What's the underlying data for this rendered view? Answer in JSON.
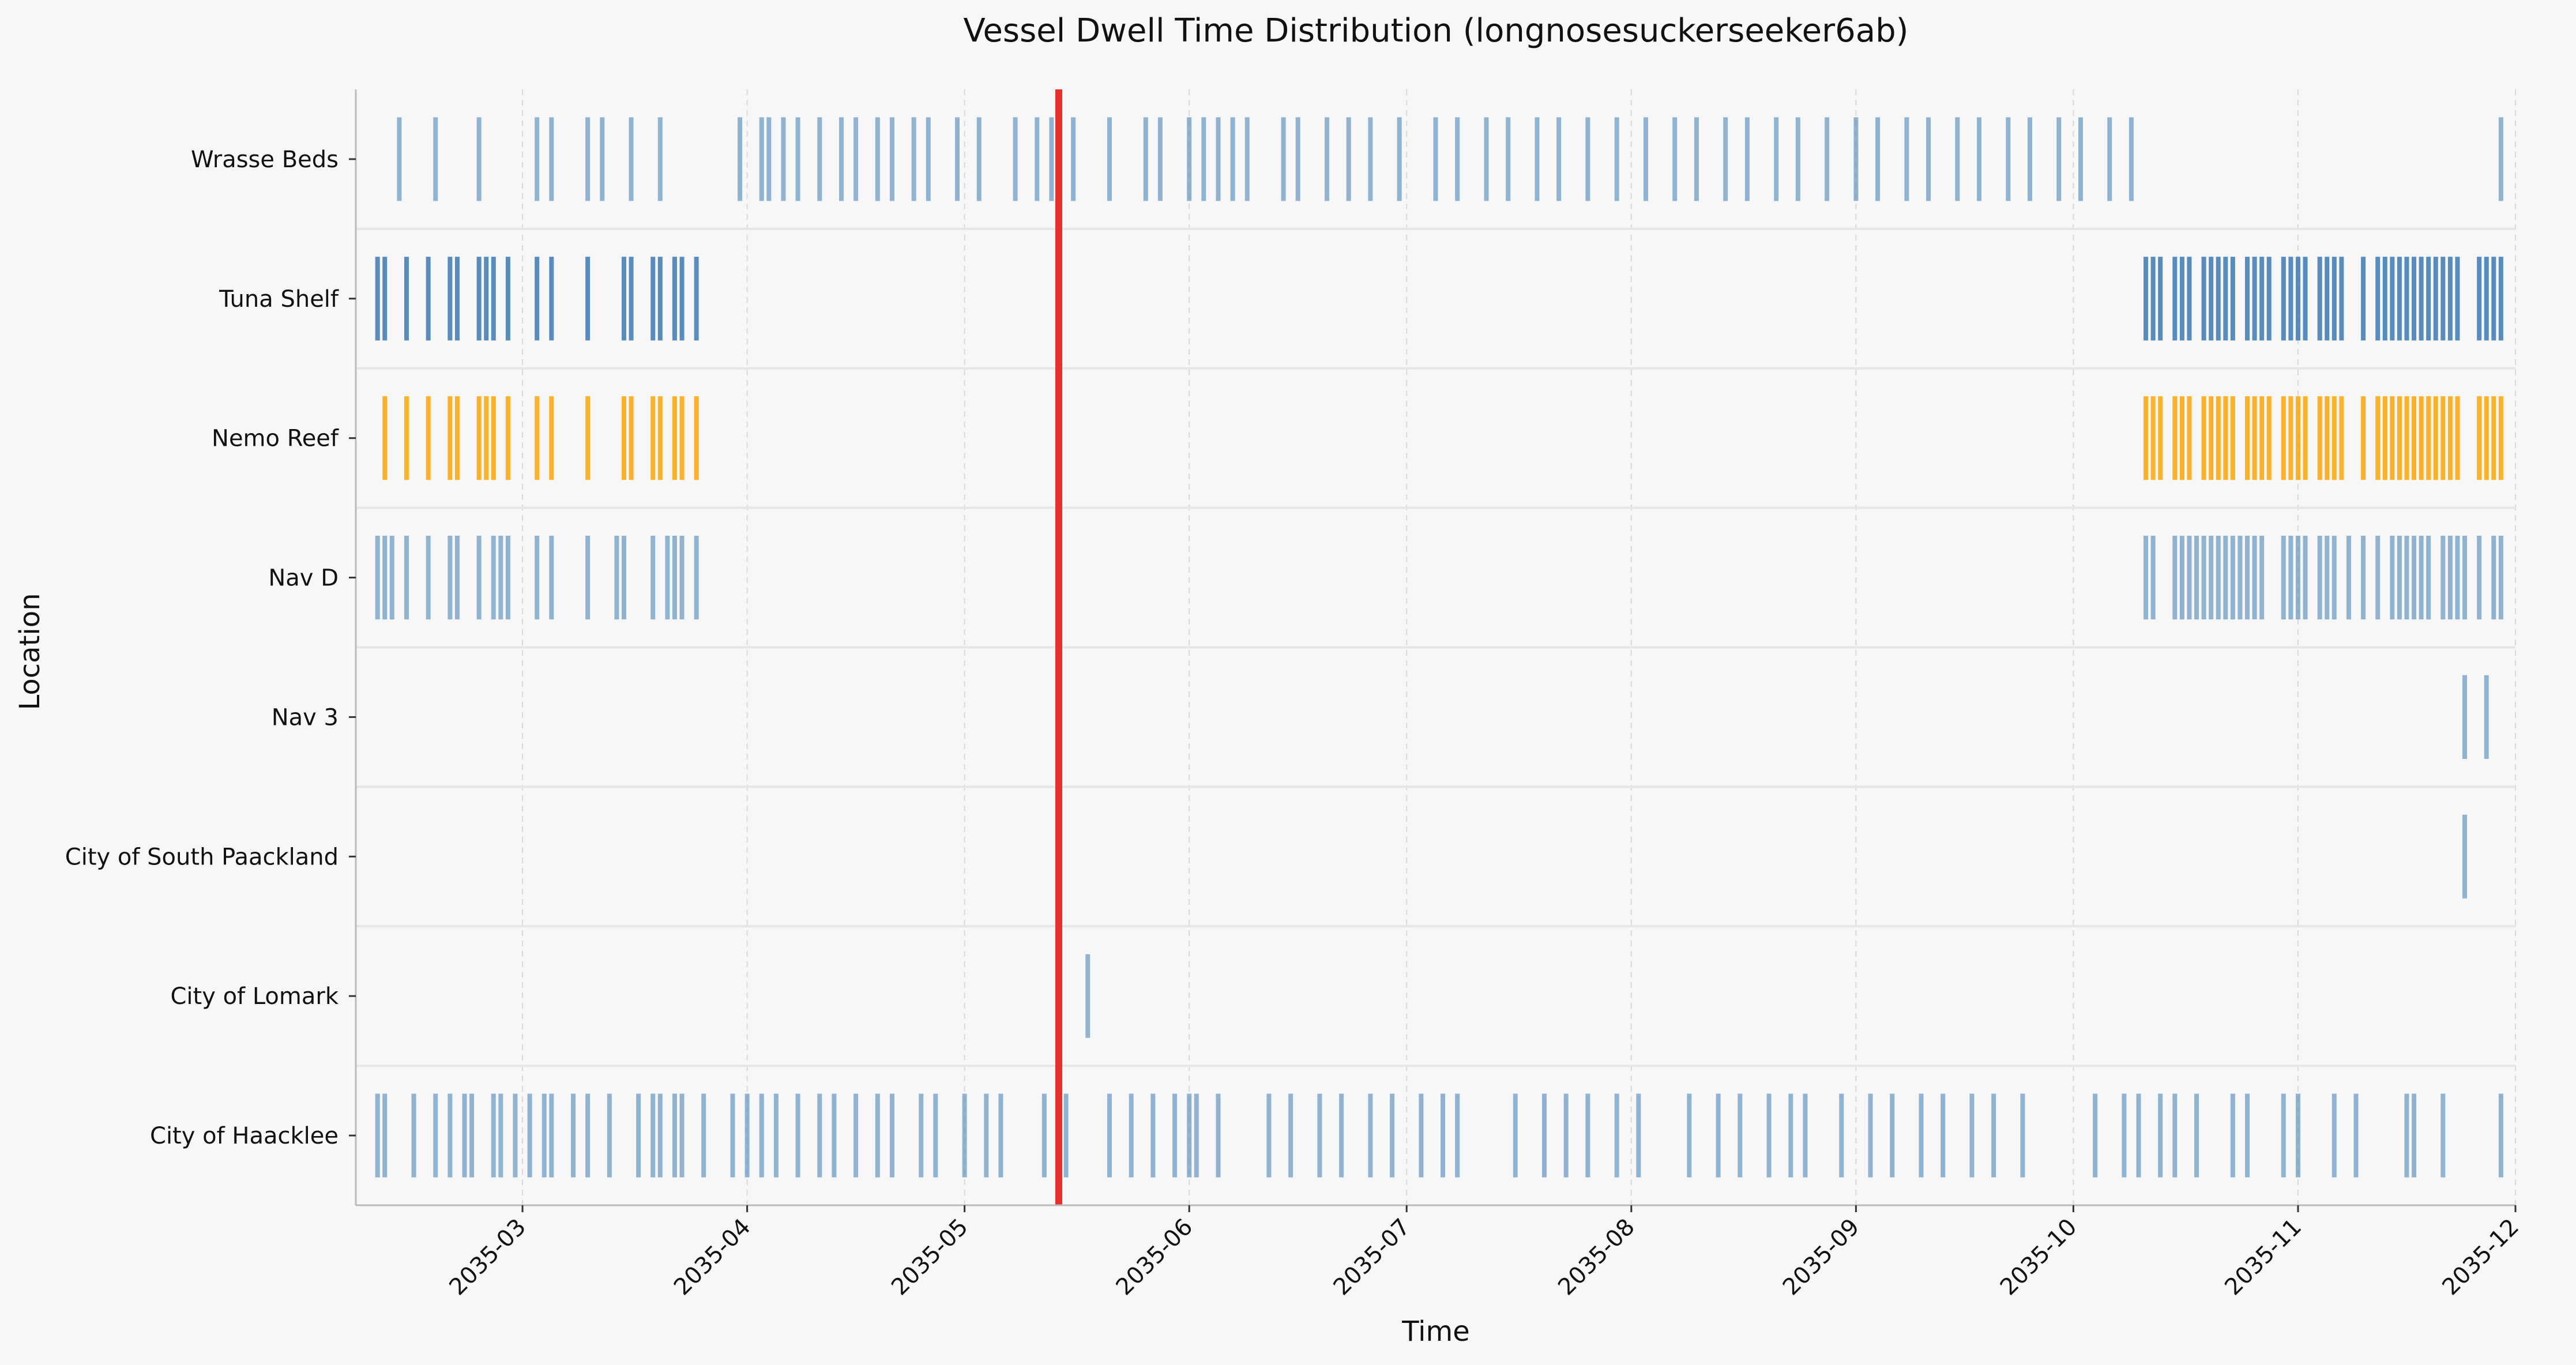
{
  "chart_data": {
    "type": "timeline",
    "title": "Vessel Dwell Time Distribution (longnosesuckerseeker6ab)",
    "xlabel": "Time",
    "ylabel": "Location",
    "x_range": [
      "2035-02-06",
      "2035-12-01"
    ],
    "xticks": [
      "2035-03",
      "2035-04",
      "2035-05",
      "2035-06",
      "2035-07",
      "2035-08",
      "2035-09",
      "2035-10",
      "2035-11",
      "2035-12"
    ],
    "grid": "x-dashed",
    "vertical_marker": {
      "date": "2035-05-14",
      "color": "#e8302a"
    },
    "colors": {
      "default": "#5b8fbf",
      "dense": "#3a79b4",
      "orange": "#ffa500",
      "background": "#f7f7f7"
    },
    "rows": [
      {
        "location": "Wrasse Beds",
        "color": "#5b8fbf",
        "events": [
          "2035-02-12",
          "2035-02-17",
          "2035-02-23",
          "2035-03-03",
          "2035-03-05",
          "2035-03-10",
          "2035-03-12",
          "2035-03-16",
          "2035-03-20",
          "2035-03-31",
          "2035-04-03",
          "2035-04-04",
          "2035-04-06",
          "2035-04-08",
          "2035-04-11",
          "2035-04-14",
          "2035-04-16",
          "2035-04-19",
          "2035-04-21",
          "2035-04-24",
          "2035-04-26",
          "2035-04-30",
          "2035-05-03",
          "2035-05-08",
          "2035-05-11",
          "2035-05-13",
          "2035-05-16",
          "2035-05-21",
          "2035-05-26",
          "2035-05-28",
          "2035-06-01",
          "2035-06-03",
          "2035-06-05",
          "2035-06-07",
          "2035-06-09",
          "2035-06-14",
          "2035-06-16",
          "2035-06-20",
          "2035-06-23",
          "2035-06-26",
          "2035-06-30",
          "2035-07-05",
          "2035-07-08",
          "2035-07-12",
          "2035-07-15",
          "2035-07-19",
          "2035-07-22",
          "2035-07-26",
          "2035-07-30",
          "2035-08-03",
          "2035-08-07",
          "2035-08-10",
          "2035-08-14",
          "2035-08-17",
          "2035-08-21",
          "2035-08-24",
          "2035-08-28",
          "2035-09-01",
          "2035-09-04",
          "2035-09-08",
          "2035-09-11",
          "2035-09-15",
          "2035-09-18",
          "2035-09-22",
          "2035-09-25",
          "2035-09-29",
          "2035-10-02",
          "2035-10-06",
          "2035-10-09",
          "2035-11-29"
        ]
      },
      {
        "location": "Tuna Shelf",
        "color": "#3a79b4",
        "events": [
          "2035-02-09",
          "2035-02-10",
          "2035-02-13",
          "2035-02-16",
          "2035-02-19",
          "2035-02-20",
          "2035-02-23",
          "2035-02-24",
          "2035-02-25",
          "2035-02-27",
          "2035-03-03",
          "2035-03-05",
          "2035-03-10",
          "2035-03-15",
          "2035-03-16",
          "2035-03-19",
          "2035-03-20",
          "2035-03-22",
          "2035-03-23",
          "2035-03-25",
          "2035-10-11",
          "2035-10-12",
          "2035-10-13",
          "2035-10-15",
          "2035-10-16",
          "2035-10-17",
          "2035-10-19",
          "2035-10-20",
          "2035-10-21",
          "2035-10-22",
          "2035-10-23",
          "2035-10-25",
          "2035-10-26",
          "2035-10-27",
          "2035-10-28",
          "2035-10-30",
          "2035-10-31",
          "2035-11-01",
          "2035-11-02",
          "2035-11-04",
          "2035-11-05",
          "2035-11-06",
          "2035-11-07",
          "2035-11-10",
          "2035-11-12",
          "2035-11-13",
          "2035-11-14",
          "2035-11-15",
          "2035-11-16",
          "2035-11-17",
          "2035-11-18",
          "2035-11-19",
          "2035-11-20",
          "2035-11-21",
          "2035-11-22",
          "2035-11-23",
          "2035-11-26",
          "2035-11-27",
          "2035-11-28",
          "2035-11-29"
        ]
      },
      {
        "location": "Nemo Reef",
        "color": "#ffa500",
        "events": [
          "2035-02-10",
          "2035-02-13",
          "2035-02-16",
          "2035-02-19",
          "2035-02-20",
          "2035-02-23",
          "2035-02-24",
          "2035-02-25",
          "2035-02-27",
          "2035-03-03",
          "2035-03-05",
          "2035-03-10",
          "2035-03-15",
          "2035-03-16",
          "2035-03-19",
          "2035-03-20",
          "2035-03-22",
          "2035-03-23",
          "2035-03-25",
          "2035-10-11",
          "2035-10-12",
          "2035-10-13",
          "2035-10-15",
          "2035-10-16",
          "2035-10-17",
          "2035-10-19",
          "2035-10-20",
          "2035-10-21",
          "2035-10-22",
          "2035-10-23",
          "2035-10-25",
          "2035-10-26",
          "2035-10-27",
          "2035-10-28",
          "2035-10-30",
          "2035-10-31",
          "2035-11-01",
          "2035-11-02",
          "2035-11-04",
          "2035-11-05",
          "2035-11-06",
          "2035-11-07",
          "2035-11-10",
          "2035-11-12",
          "2035-11-13",
          "2035-11-14",
          "2035-11-15",
          "2035-11-16",
          "2035-11-17",
          "2035-11-18",
          "2035-11-19",
          "2035-11-20",
          "2035-11-21",
          "2035-11-22",
          "2035-11-23",
          "2035-11-26",
          "2035-11-27",
          "2035-11-28",
          "2035-11-29"
        ]
      },
      {
        "location": "Nav D",
        "color": "#5b8fbf",
        "events": [
          "2035-02-09",
          "2035-02-10",
          "2035-02-11",
          "2035-02-13",
          "2035-02-16",
          "2035-02-19",
          "2035-02-20",
          "2035-02-23",
          "2035-02-25",
          "2035-02-26",
          "2035-02-27",
          "2035-03-03",
          "2035-03-05",
          "2035-03-10",
          "2035-03-14",
          "2035-03-15",
          "2035-03-19",
          "2035-03-21",
          "2035-03-22",
          "2035-03-23",
          "2035-03-25",
          "2035-10-11",
          "2035-10-12",
          "2035-10-15",
          "2035-10-16",
          "2035-10-17",
          "2035-10-18",
          "2035-10-19",
          "2035-10-20",
          "2035-10-21",
          "2035-10-22",
          "2035-10-23",
          "2035-10-24",
          "2035-10-25",
          "2035-10-26",
          "2035-10-27",
          "2035-10-30",
          "2035-10-31",
          "2035-11-01",
          "2035-11-02",
          "2035-11-04",
          "2035-11-05",
          "2035-11-06",
          "2035-11-08",
          "2035-11-10",
          "2035-11-12",
          "2035-11-14",
          "2035-11-15",
          "2035-11-16",
          "2035-11-17",
          "2035-11-18",
          "2035-11-19",
          "2035-11-21",
          "2035-11-22",
          "2035-11-23",
          "2035-11-24",
          "2035-11-26",
          "2035-11-28",
          "2035-11-29"
        ]
      },
      {
        "location": "Nav 3",
        "color": "#5b8fbf",
        "events": [
          "2035-11-24",
          "2035-11-27"
        ]
      },
      {
        "location": "City of South Paackland",
        "color": "#5b8fbf",
        "events": [
          "2035-11-24"
        ]
      },
      {
        "location": "City of Lomark",
        "color": "#5b8fbf",
        "events": [
          "2035-05-18"
        ]
      },
      {
        "location": "City of Haacklee",
        "color": "#5b8fbf",
        "events": [
          "2035-02-09",
          "2035-02-10",
          "2035-02-14",
          "2035-02-17",
          "2035-02-19",
          "2035-02-21",
          "2035-02-22",
          "2035-02-25",
          "2035-02-26",
          "2035-02-28",
          "2035-03-02",
          "2035-03-04",
          "2035-03-05",
          "2035-03-08",
          "2035-03-10",
          "2035-03-13",
          "2035-03-17",
          "2035-03-19",
          "2035-03-20",
          "2035-03-22",
          "2035-03-23",
          "2035-03-26",
          "2035-03-30",
          "2035-04-01",
          "2035-04-03",
          "2035-04-05",
          "2035-04-08",
          "2035-04-11",
          "2035-04-13",
          "2035-04-16",
          "2035-04-19",
          "2035-04-21",
          "2035-04-25",
          "2035-04-27",
          "2035-05-01",
          "2035-05-04",
          "2035-05-06",
          "2035-05-12",
          "2035-05-15",
          "2035-05-21",
          "2035-05-24",
          "2035-05-27",
          "2035-05-30",
          "2035-06-01",
          "2035-06-02",
          "2035-06-05",
          "2035-06-12",
          "2035-06-15",
          "2035-06-19",
          "2035-06-22",
          "2035-06-26",
          "2035-06-29",
          "2035-07-03",
          "2035-07-06",
          "2035-07-08",
          "2035-07-16",
          "2035-07-20",
          "2035-07-23",
          "2035-07-26",
          "2035-07-30",
          "2035-08-02",
          "2035-08-09",
          "2035-08-13",
          "2035-08-16",
          "2035-08-20",
          "2035-08-23",
          "2035-08-25",
          "2035-08-30",
          "2035-09-03",
          "2035-09-06",
          "2035-09-10",
          "2035-09-13",
          "2035-09-17",
          "2035-09-20",
          "2035-09-24",
          "2035-10-04",
          "2035-10-08",
          "2035-10-10",
          "2035-10-13",
          "2035-10-15",
          "2035-10-18",
          "2035-10-23",
          "2035-10-25",
          "2035-10-30",
          "2035-11-01",
          "2035-11-06",
          "2035-11-09",
          "2035-11-16",
          "2035-11-17",
          "2035-11-21",
          "2035-11-29"
        ]
      }
    ]
  }
}
